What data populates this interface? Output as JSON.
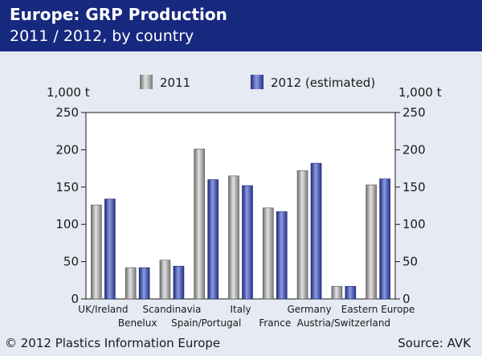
{
  "header": {
    "title": "Europe: GRP Production",
    "subtitle": "2011 / 2012, by country"
  },
  "footer": {
    "copyright": "© 2012 Plastics Information Europe",
    "source": "Source: AVK"
  },
  "colors": {
    "header_bg": "#17287f",
    "page_bg": "#e5eaf3",
    "bar_2011": "#9a9a9a",
    "bar_2012": "#3e4fab"
  },
  "chart_data": {
    "type": "bar",
    "unit_left": "1,000 t",
    "unit_right": "1,000 t",
    "ylim": [
      0,
      250
    ],
    "yticks": [
      "0",
      "50",
      "100",
      "150",
      "200",
      "250"
    ],
    "grid": false,
    "legend_position": "top",
    "categories": [
      "UK/Ireland",
      "Benelux",
      "Scandinavia",
      "Spain/Portugal",
      "Italy",
      "France",
      "Germany",
      "Austria/Switzerland",
      "Eastern Europe"
    ],
    "series": [
      {
        "name": "2011",
        "values": [
          126,
          42,
          52,
          201,
          165,
          122,
          172,
          17,
          153
        ]
      },
      {
        "name": "2012 (estimated)",
        "values": [
          134,
          42,
          44,
          160,
          152,
          117,
          182,
          17,
          161
        ]
      }
    ]
  }
}
